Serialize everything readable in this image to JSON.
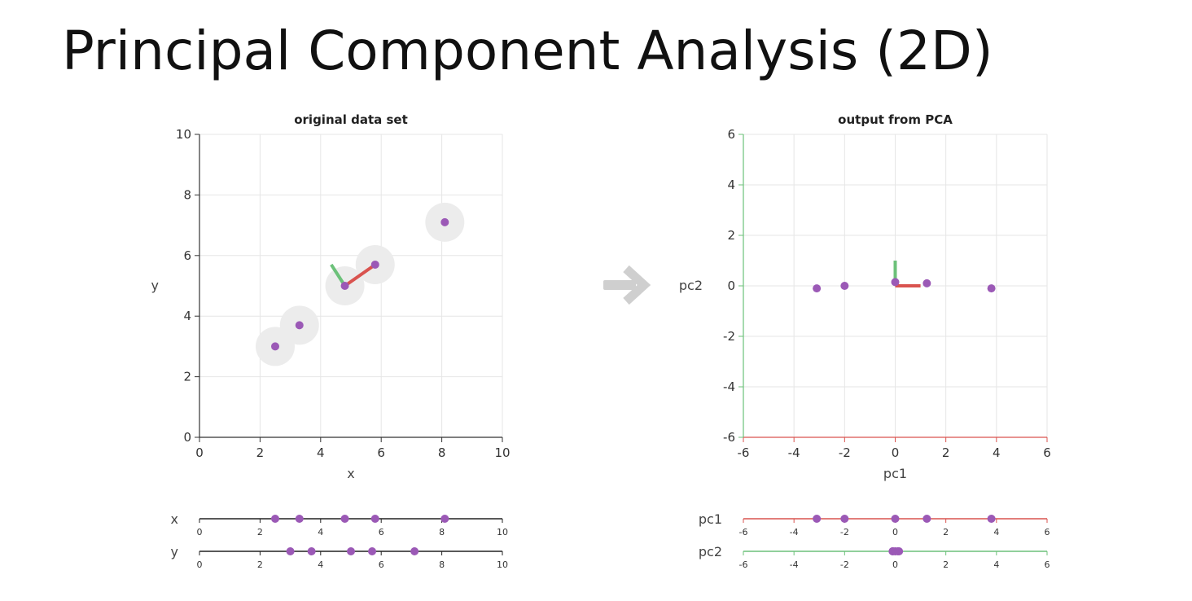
{
  "slide": {
    "title": "Principal Component Analysis (2D)"
  },
  "colors": {
    "point": "#9b59b6",
    "pc1": "#d9534f",
    "pc2": "#6cc17a",
    "halo": "#ececec",
    "arrow": "#cfcfcf"
  },
  "icons": {
    "transition_arrow": "right-arrow-icon"
  },
  "chart_data": [
    {
      "id": "original",
      "type": "scatter",
      "title": "original data set",
      "xlabel": "x",
      "ylabel": "y",
      "xlim": [
        0,
        10
      ],
      "ylim": [
        0,
        10
      ],
      "xticks": [
        0,
        2,
        4,
        6,
        8,
        10
      ],
      "yticks": [
        0,
        2,
        4,
        6,
        8,
        10
      ],
      "grid": true,
      "points": [
        {
          "x": 2.5,
          "y": 3.0
        },
        {
          "x": 3.3,
          "y": 3.7
        },
        {
          "x": 4.8,
          "y": 5.0
        },
        {
          "x": 5.8,
          "y": 5.7
        },
        {
          "x": 8.1,
          "y": 7.1
        }
      ],
      "pc1_vector": {
        "from": [
          4.8,
          5.0
        ],
        "to": [
          5.8,
          5.7
        ]
      },
      "pc2_vector": {
        "from": [
          4.8,
          5.0
        ],
        "to": [
          4.35,
          5.7
        ]
      },
      "projections": {
        "x": {
          "label": "x",
          "ticks": [
            0,
            2,
            4,
            6,
            8,
            10
          ],
          "values": [
            2.5,
            3.3,
            4.8,
            5.8,
            8.1
          ]
        },
        "y": {
          "label": "y",
          "ticks": [
            0,
            2,
            4,
            6,
            8,
            10
          ],
          "values": [
            3.0,
            3.7,
            5.0,
            5.7,
            7.1
          ]
        }
      }
    },
    {
      "id": "pca",
      "type": "scatter",
      "title": "output from PCA",
      "xlabel": "pc1",
      "ylabel": "pc2",
      "xlim": [
        -6,
        6
      ],
      "ylim": [
        -6,
        6
      ],
      "xticks": [
        -6,
        -4,
        -2,
        0,
        2,
        4,
        6
      ],
      "yticks": [
        -6,
        -4,
        -2,
        0,
        2,
        4,
        6
      ],
      "grid": true,
      "points": [
        {
          "x": -3.1,
          "y": -0.1
        },
        {
          "x": -2.0,
          "y": 0.0
        },
        {
          "x": 0.0,
          "y": 0.15
        },
        {
          "x": 1.25,
          "y": 0.1
        },
        {
          "x": 3.8,
          "y": -0.1
        }
      ],
      "pc1_vector": {
        "from": [
          0,
          0
        ],
        "to": [
          1.0,
          0
        ]
      },
      "pc2_vector": {
        "from": [
          0,
          0
        ],
        "to": [
          0,
          1.0
        ]
      },
      "projections": {
        "x": {
          "label": "pc1",
          "ticks": [
            -6,
            -4,
            -2,
            0,
            2,
            4,
            6
          ],
          "values": [
            -3.1,
            -2.0,
            0.0,
            1.25,
            3.8
          ]
        },
        "y": {
          "label": "pc2",
          "ticks": [
            -6,
            -4,
            -2,
            0,
            2,
            4,
            6
          ],
          "values": [
            -0.1,
            0.0,
            0.15,
            0.1,
            -0.1
          ]
        }
      }
    }
  ]
}
